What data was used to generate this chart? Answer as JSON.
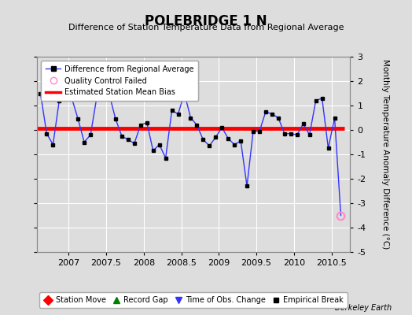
{
  "title": "POLEBRIDGE 1 N",
  "subtitle": "Difference of Station Temperature Data from Regional Average",
  "ylabel": "Monthly Temperature Anomaly Difference (°C)",
  "xlabel_bottom": "Berkeley Earth",
  "background_color": "#dddddd",
  "plot_bg_color": "#dddddd",
  "xlim": [
    2006.58,
    2010.75
  ],
  "ylim": [
    -5,
    3
  ],
  "yticks": [
    -5,
    -4,
    -3,
    -2,
    -1,
    0,
    1,
    2,
    3
  ],
  "xticks": [
    2007,
    2007.5,
    2008,
    2008.5,
    2009,
    2009.5,
    2010,
    2010.5
  ],
  "xticklabels": [
    "2007",
    "2007.5",
    "2008",
    "2008.5",
    "2009",
    "2009.5",
    "2010",
    "2010.5"
  ],
  "bias_y": 0.05,
  "line_color": "#3333ff",
  "marker_color": "#000000",
  "qc_failed_color": "#ff88cc",
  "x_data": [
    2006.625,
    2006.708,
    2006.792,
    2006.875,
    2006.958,
    2007.042,
    2007.125,
    2007.208,
    2007.292,
    2007.375,
    2007.458,
    2007.542,
    2007.625,
    2007.708,
    2007.792,
    2007.875,
    2007.958,
    2008.042,
    2008.125,
    2008.208,
    2008.292,
    2008.375,
    2008.458,
    2008.542,
    2008.625,
    2008.708,
    2008.792,
    2008.875,
    2008.958,
    2009.042,
    2009.125,
    2009.208,
    2009.292,
    2009.375,
    2009.458,
    2009.542,
    2009.625,
    2009.708,
    2009.792,
    2009.875,
    2009.958,
    2010.042,
    2010.125,
    2010.208,
    2010.292,
    2010.375,
    2010.458,
    2010.542,
    2010.625
  ],
  "y_data": [
    1.5,
    -0.15,
    -0.6,
    1.2,
    1.4,
    1.3,
    0.45,
    -0.5,
    -0.2,
    1.35,
    1.45,
    1.45,
    0.45,
    -0.25,
    -0.4,
    -0.55,
    0.2,
    0.3,
    -0.85,
    -0.6,
    -1.15,
    0.8,
    0.65,
    1.5,
    0.5,
    0.2,
    -0.4,
    -0.65,
    -0.3,
    0.1,
    -0.35,
    -0.6,
    -0.45,
    -2.3,
    -0.05,
    -0.05,
    0.75,
    0.65,
    0.5,
    -0.15,
    -0.15,
    -0.2,
    0.25,
    -0.2,
    1.2,
    1.3,
    -0.75,
    0.5,
    -3.5
  ],
  "qc_failed_indices": [
    48
  ],
  "bias_x_start": 2006.58,
  "bias_x_end": 2010.67
}
